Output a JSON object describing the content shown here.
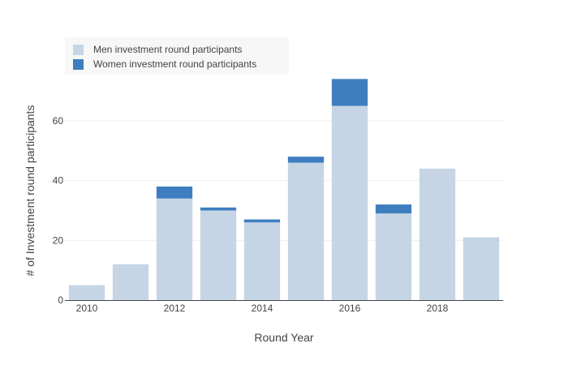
{
  "colors": {
    "men": "#c5d5e5",
    "women": "#3e7ebf",
    "grid": "#eeeeee",
    "axis": "#444444"
  },
  "chart_data": {
    "type": "bar",
    "barmode": "stacked",
    "x": [
      2010,
      2011,
      2012,
      2013,
      2014,
      2015,
      2016,
      2017,
      2018,
      2019
    ],
    "series": [
      {
        "name": "Men investment round participants",
        "values": [
          5,
          12,
          34,
          30,
          26,
          46,
          65,
          29,
          44,
          21
        ]
      },
      {
        "name": "Women investment round participants",
        "values": [
          0,
          0,
          4,
          1,
          1,
          2,
          9,
          3,
          0,
          0
        ]
      }
    ],
    "xlabel": "Round Year",
    "ylabel": "# of Investment round participants",
    "x_ticks": [
      "2010",
      "2012",
      "2014",
      "2016",
      "2018"
    ],
    "y_ticks": [
      "0",
      "20",
      "40",
      "60"
    ],
    "ylim": [
      0,
      76
    ],
    "grid": true,
    "legend_position": "top-left"
  }
}
